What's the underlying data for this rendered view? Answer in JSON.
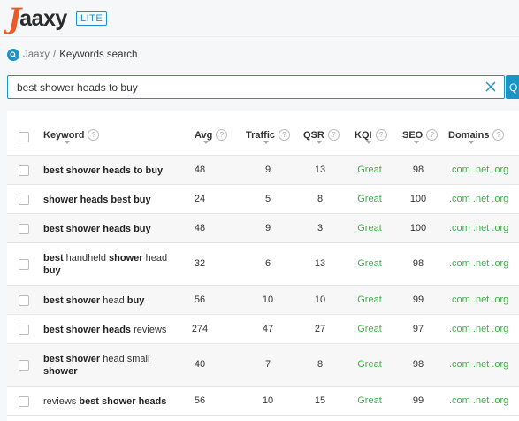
{
  "app": {
    "logo_text": "aaxy",
    "logo_j": "J",
    "badge": "LITE"
  },
  "breadcrumb": {
    "home": "Jaaxy",
    "separator": "/",
    "current": "Keywords search"
  },
  "search": {
    "value": "best shower heads to buy"
  },
  "table": {
    "columns": [
      "Keyword",
      "Avg",
      "Traffic",
      "QSR",
      "KQI",
      "SEO",
      "Domains"
    ],
    "rows": [
      {
        "keyword": [
          [
            "b",
            "best shower heads to buy"
          ]
        ],
        "avg": "48",
        "traffic": "9",
        "qsr": "13",
        "kqi": "Great",
        "seo": "98",
        "domains": ".com .net .org"
      },
      {
        "keyword": [
          [
            "b",
            "shower heads best buy"
          ]
        ],
        "avg": "24",
        "traffic": "5",
        "qsr": "8",
        "kqi": "Great",
        "seo": "100",
        "domains": ".com .net .org"
      },
      {
        "keyword": [
          [
            "b",
            "best shower heads buy"
          ]
        ],
        "avg": "48",
        "traffic": "9",
        "qsr": "3",
        "kqi": "Great",
        "seo": "100",
        "domains": ".com .net .org"
      },
      {
        "keyword": [
          [
            "b",
            "best"
          ],
          [
            "n",
            " handheld "
          ],
          [
            "b",
            "shower"
          ],
          [
            "n",
            " head "
          ],
          [
            "b",
            "buy"
          ]
        ],
        "avg": "32",
        "traffic": "6",
        "qsr": "13",
        "kqi": "Great",
        "seo": "98",
        "domains": ".com .net .org"
      },
      {
        "keyword": [
          [
            "b",
            "best shower"
          ],
          [
            "n",
            " head "
          ],
          [
            "b",
            "buy"
          ]
        ],
        "avg": "56",
        "traffic": "10",
        "qsr": "10",
        "kqi": "Great",
        "seo": "99",
        "domains": ".com .net .org"
      },
      {
        "keyword": [
          [
            "b",
            "best shower heads"
          ],
          [
            "n",
            " reviews"
          ]
        ],
        "avg": "274",
        "traffic": "47",
        "qsr": "27",
        "kqi": "Great",
        "seo": "97",
        "domains": ".com .net .org"
      },
      {
        "keyword": [
          [
            "b",
            "best shower"
          ],
          [
            "n",
            " head small "
          ],
          [
            "b",
            "shower"
          ]
        ],
        "avg": "40",
        "traffic": "7",
        "qsr": "8",
        "kqi": "Great",
        "seo": "98",
        "domains": ".com .net .org"
      },
      {
        "keyword": [
          [
            "n",
            "reviews "
          ],
          [
            "b",
            "best shower heads"
          ]
        ],
        "avg": "56",
        "traffic": "10",
        "qsr": "15",
        "kqi": "Great",
        "seo": "99",
        "domains": ".com .net .org"
      }
    ]
  },
  "colors": {
    "accent": "#1a93c6",
    "great": "#3fae49",
    "logo": "#e85a2a"
  },
  "icons": {
    "breadcrumb": "search-icon",
    "clear": "close-icon",
    "info": "info-icon"
  }
}
